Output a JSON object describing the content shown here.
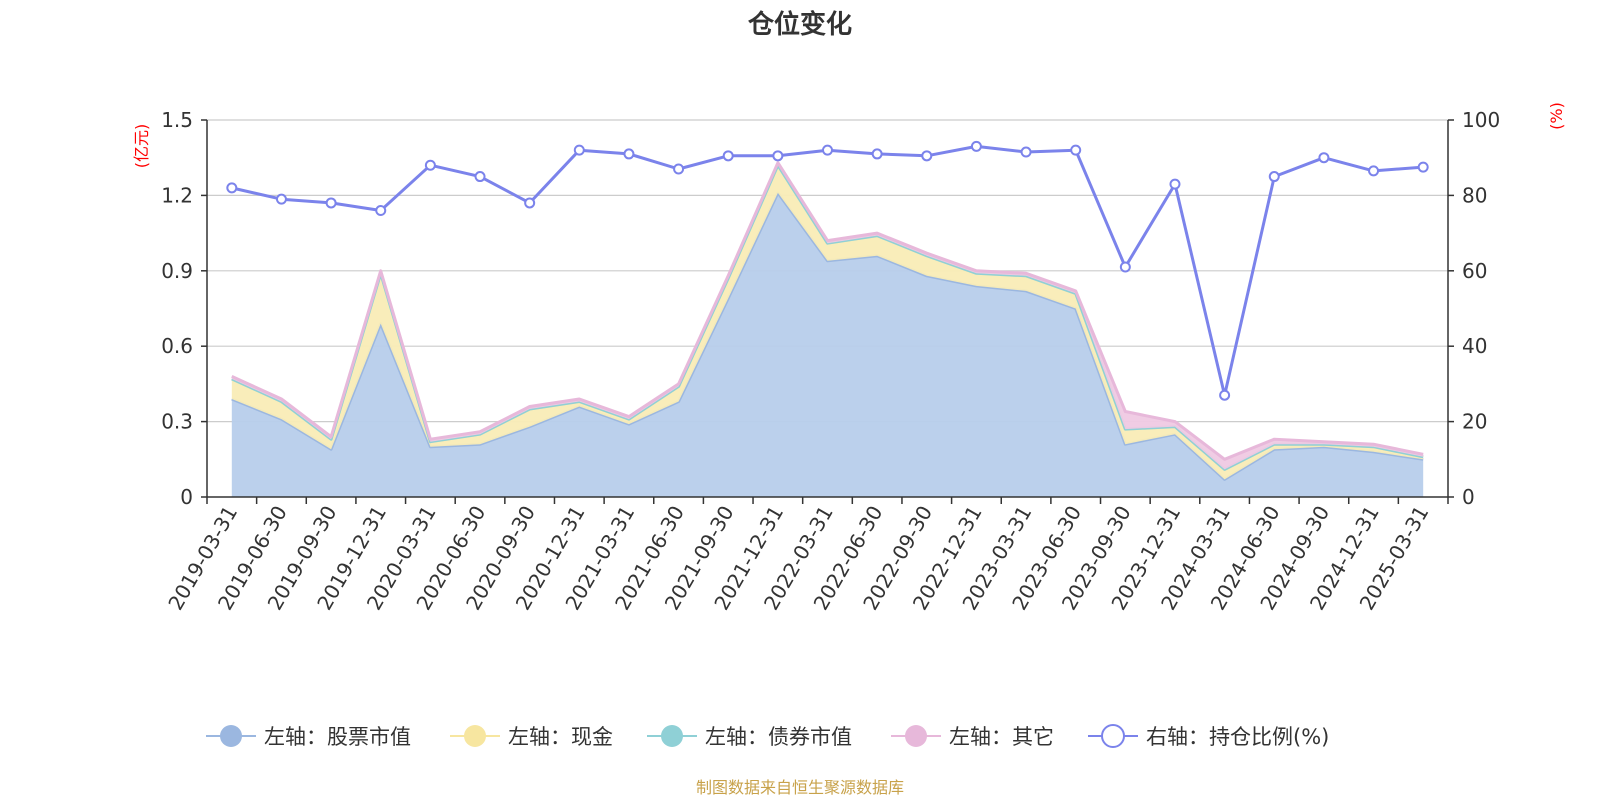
{
  "title": "仓位变化",
  "footer": "制图数据来自恒生聚源数据库",
  "y_left_unit": "(亿元)",
  "y_right_unit": "(%)",
  "chart_data": {
    "type": "area",
    "title": "仓位变化",
    "categories": [
      "2019-03-31",
      "2019-06-30",
      "2019-09-30",
      "2019-12-31",
      "2020-03-31",
      "2020-06-30",
      "2020-09-30",
      "2020-12-31",
      "2021-03-31",
      "2021-06-30",
      "2021-09-30",
      "2021-12-31",
      "2022-03-31",
      "2022-06-30",
      "2022-09-30",
      "2022-12-31",
      "2023-03-31",
      "2023-06-30",
      "2023-09-30",
      "2023-12-31",
      "2024-03-31",
      "2024-06-30",
      "2024-09-30",
      "2024-12-31",
      "2025-03-31"
    ],
    "y_left": {
      "unit": "(亿元)",
      "lim": [
        0,
        1.5
      ],
      "ticks": [
        "0",
        "0.3",
        "0.6",
        "0.9",
        "1.2",
        "1.5"
      ],
      "tick_values": [
        0,
        0.3,
        0.6,
        0.9,
        1.2,
        1.5
      ]
    },
    "y_right": {
      "unit": "(%)",
      "lim": [
        0,
        100
      ],
      "ticks": [
        "0",
        "20",
        "40",
        "60",
        "80",
        "100"
      ],
      "tick_values": [
        0,
        20,
        40,
        60,
        80,
        100
      ]
    },
    "grid": true,
    "legend_position": "bottom",
    "series": [
      {
        "name": "左轴：股票市值",
        "axis": "left",
        "kind": "stacked-area",
        "color": "#9bb7e0",
        "fill": "#b7cdeb",
        "values": [
          0.39,
          0.31,
          0.19,
          0.69,
          0.2,
          0.21,
          0.28,
          0.36,
          0.29,
          0.38,
          0.79,
          1.21,
          0.94,
          0.96,
          0.88,
          0.84,
          0.82,
          0.75,
          0.21,
          0.25,
          0.07,
          0.19,
          0.2,
          0.18,
          0.15
        ]
      },
      {
        "name": "左轴：现金",
        "axis": "left",
        "kind": "stacked-area",
        "color": "#f7e6a0",
        "fill": "#f9ecb6",
        "values": [
          0.08,
          0.07,
          0.04,
          0.2,
          0.02,
          0.04,
          0.07,
          0.02,
          0.02,
          0.06,
          0.08,
          0.11,
          0.07,
          0.08,
          0.08,
          0.05,
          0.06,
          0.06,
          0.06,
          0.03,
          0.04,
          0.02,
          0.01,
          0.02,
          0.01
        ]
      },
      {
        "name": "左轴：债券市值",
        "axis": "left",
        "kind": "stacked-area",
        "color": "#8fd0d6",
        "fill": "#a9dde0",
        "values": [
          0,
          0,
          0,
          0,
          0,
          0,
          0,
          0,
          0,
          0,
          0,
          0,
          0,
          0,
          0,
          0,
          0,
          0,
          0,
          0,
          0,
          0,
          0,
          0,
          0
        ]
      },
      {
        "name": "左轴：其它",
        "axis": "left",
        "kind": "stacked-area",
        "color": "#e7b8da",
        "fill": "#efc9e3",
        "values": [
          0.01,
          0.01,
          0.01,
          0.01,
          0.01,
          0.01,
          0.01,
          0.01,
          0.01,
          0.01,
          0.01,
          0.01,
          0.01,
          0.01,
          0.01,
          0.01,
          0.01,
          0.01,
          0.07,
          0.02,
          0.04,
          0.02,
          0.01,
          0.01,
          0.01
        ]
      },
      {
        "name": "右轴：持仓比例(%)",
        "axis": "right",
        "kind": "line",
        "color": "#7b83eb",
        "values": [
          82,
          79,
          78,
          76,
          88,
          85,
          78,
          92,
          91,
          87,
          90.5,
          90.5,
          92,
          91,
          90.5,
          93,
          91.5,
          92,
          61,
          83,
          27,
          85,
          90,
          86.5,
          87.5
        ]
      }
    ]
  }
}
